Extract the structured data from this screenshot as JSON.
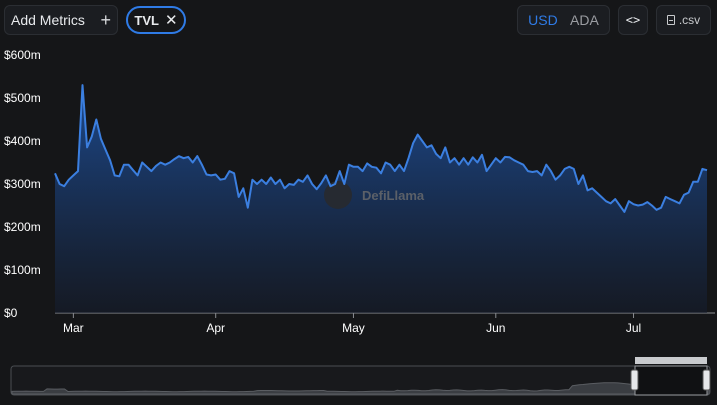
{
  "toolbar": {
    "add_metrics_label": "Add Metrics",
    "add_metrics_icon": "plus-icon",
    "metric_chip_label": "TVL",
    "metric_chip_remove_icon": "close-icon",
    "currency_options": [
      "USD",
      "ADA"
    ],
    "currency_selected": "USD",
    "embed_label": "<>",
    "csv_label": ".csv"
  },
  "watermark": "DefiLlama",
  "colors": {
    "accent": "#2f7be6",
    "line": "#3b7fe0",
    "background": "#151618"
  },
  "chart_data": {
    "type": "area",
    "title": "",
    "xlabel": "",
    "ylabel": "",
    "ylim": [
      0,
      600
    ],
    "yticks": [
      0,
      100,
      200,
      300,
      400,
      500,
      600
    ],
    "ytick_labels": [
      "$0",
      "$100m",
      "$200m",
      "$300m",
      "$400m",
      "$500m",
      "$600m"
    ],
    "xticks": [
      "Mar",
      "Apr",
      "May",
      "Jun",
      "Jul"
    ],
    "series": [
      {
        "name": "TVL",
        "unit": "USD millions",
        "values": [
          325,
          300,
          295,
          310,
          320,
          330,
          530,
          385,
          410,
          450,
          405,
          380,
          355,
          320,
          318,
          345,
          345,
          332,
          320,
          350,
          340,
          330,
          342,
          350,
          345,
          350,
          358,
          365,
          360,
          363,
          350,
          365,
          345,
          322,
          320,
          322,
          310,
          312,
          330,
          325,
          270,
          290,
          245,
          310,
          300,
          310,
          300,
          315,
          300,
          310,
          290,
          300,
          298,
          310,
          305,
          320,
          300,
          288,
          302,
          320,
          295,
          300,
          330,
          300,
          345,
          340,
          340,
          330,
          348,
          340,
          338,
          325,
          350,
          345,
          330,
          345,
          330,
          360,
          395,
          415,
          400,
          385,
          390,
          370,
          360,
          385,
          350,
          360,
          345,
          360,
          345,
          362,
          350,
          368,
          330,
          345,
          360,
          350,
          363,
          362,
          355,
          350,
          345,
          330,
          328,
          330,
          320,
          345,
          330,
          310,
          320,
          335,
          340,
          335,
          300,
          320,
          285,
          290,
          280,
          270,
          260,
          255,
          265,
          250,
          235,
          260,
          253,
          250,
          252,
          258,
          250,
          240,
          245,
          270,
          265,
          260,
          255,
          275,
          280,
          305,
          305,
          335,
          332
        ]
      }
    ],
    "x_start": "2024-02-26",
    "x_end": "2024-07-17",
    "grid": false,
    "legend": "none"
  }
}
